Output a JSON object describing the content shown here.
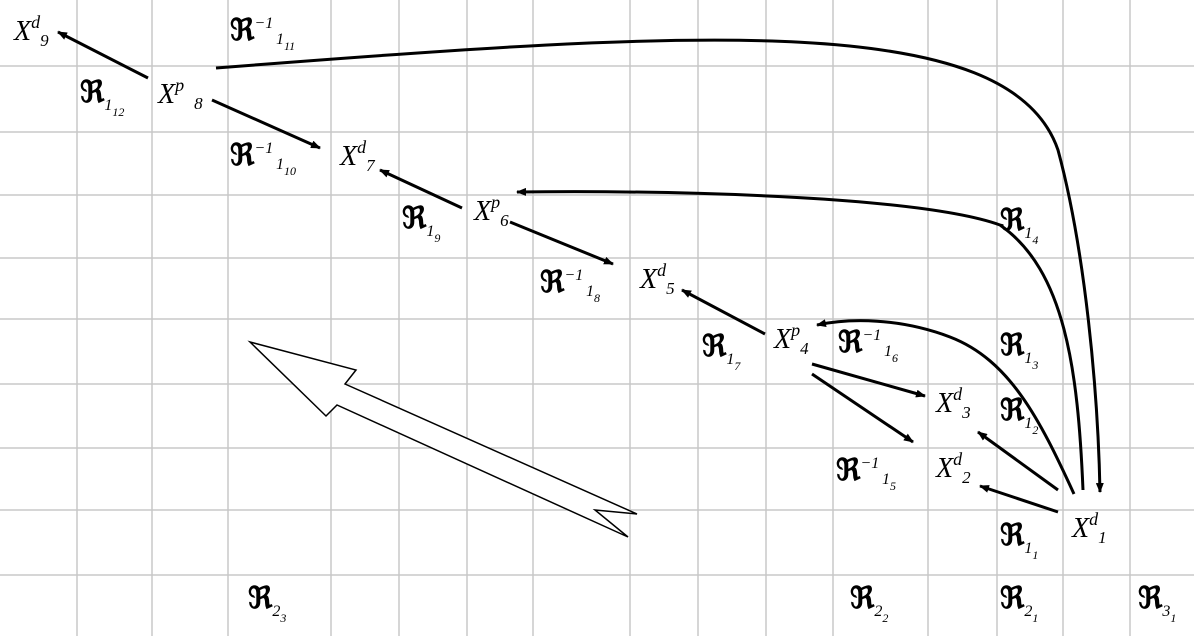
{
  "x_nodes": [
    {
      "id": "x9",
      "base": "X",
      "sup": "d",
      "sub": "9"
    },
    {
      "id": "x8",
      "base": "X",
      "sup": "p",
      "sub": "8"
    },
    {
      "id": "x7",
      "base": "X",
      "sup": "d",
      "sub": "7"
    },
    {
      "id": "x6",
      "base": "X",
      "sup": "p",
      "sub": "6"
    },
    {
      "id": "x5",
      "base": "X",
      "sup": "d",
      "sub": "5"
    },
    {
      "id": "x4",
      "base": "X",
      "sup": "p",
      "sub": "4"
    },
    {
      "id": "x3",
      "base": "X",
      "sup": "d",
      "sub": "3"
    },
    {
      "id": "x2",
      "base": "X",
      "sup": "d",
      "sub": "2"
    },
    {
      "id": "x1",
      "base": "X",
      "sup": "d",
      "sub": "1"
    }
  ],
  "r_labels": [
    {
      "id": "r1_12",
      "base": "ℜ",
      "inv": "",
      "sub": "1",
      "subsub": "12"
    },
    {
      "id": "rinv1_11",
      "base": "ℜ",
      "inv": "−1",
      "sub": "1",
      "subsub": "11"
    },
    {
      "id": "rinv1_10",
      "base": "ℜ",
      "inv": "−1",
      "sub": "1",
      "subsub": "10"
    },
    {
      "id": "r1_9",
      "base": "ℜ",
      "inv": "",
      "sub": "1",
      "subsub": "9"
    },
    {
      "id": "rinv1_8",
      "base": "ℜ",
      "inv": "−1",
      "sub": "1",
      "subsub": "8"
    },
    {
      "id": "r1_7",
      "base": "ℜ",
      "inv": "",
      "sub": "1",
      "subsub": "7"
    },
    {
      "id": "rinv1_6",
      "base": "ℜ",
      "inv": "−1",
      "sub": "1",
      "subsub": "6"
    },
    {
      "id": "rinv1_5",
      "base": "ℜ",
      "inv": "−1",
      "sub": "1",
      "subsub": "5"
    },
    {
      "id": "r1_4",
      "base": "ℜ",
      "inv": "",
      "sub": "1",
      "subsub": "4"
    },
    {
      "id": "r1_3",
      "base": "ℜ",
      "inv": "",
      "sub": "1",
      "subsub": "3"
    },
    {
      "id": "r1_2",
      "base": "ℜ",
      "inv": "",
      "sub": "1",
      "subsub": "2"
    },
    {
      "id": "r1_1",
      "base": "ℜ",
      "inv": "",
      "sub": "1",
      "subsub": "1"
    },
    {
      "id": "r2_3",
      "base": "ℜ",
      "inv": "",
      "sub": "2",
      "subsub": "3"
    },
    {
      "id": "r2_2",
      "base": "ℜ",
      "inv": "",
      "sub": "2",
      "subsub": "2"
    },
    {
      "id": "r2_1",
      "base": "ℜ",
      "inv": "",
      "sub": "2",
      "subsub": "1"
    },
    {
      "id": "r3_1",
      "base": "ℜ",
      "inv": "",
      "sub": "3",
      "subsub": "1"
    }
  ]
}
